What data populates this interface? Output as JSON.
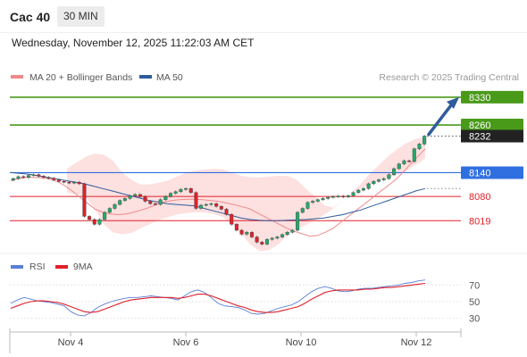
{
  "header": {
    "instrument": "Cac 40",
    "interval": "30 MIN",
    "datetime": "Wednesday, November 12, 2025 11:22:03 AM CET"
  },
  "legend": {
    "ma20_label": "MA 20 + Bollinger Bands",
    "ma50_label": "MA 50",
    "ma20_color": "#f08a8a",
    "ma50_color": "#2f5c9c",
    "credit": "Research © 2025 Trading Central"
  },
  "rsi_legend": {
    "rsi_label": "RSI",
    "ma_label": "9MA",
    "rsi_color": "#5b7fd6",
    "ma_color": "#e0202a"
  },
  "chart_data": [
    {
      "type": "line",
      "panel": "price",
      "x_ticks": [
        "Nov 4",
        "Nov 6",
        "Nov 10",
        "Nov 12"
      ],
      "ylim": [
        7950,
        8350
      ],
      "levels": [
        {
          "value": 8330,
          "label": "8330",
          "kind": "resistance",
          "color": "#4a9a1a"
        },
        {
          "value": 8260,
          "label": "8260",
          "kind": "resistance",
          "color": "#4a9a1a"
        },
        {
          "value": 8232,
          "label": "8232",
          "kind": "last-price",
          "color": "#222222"
        },
        {
          "value": 8140,
          "label": "8140",
          "kind": "pivot",
          "color": "#2f6fe0"
        },
        {
          "value": 8080,
          "label": "8080",
          "kind": "support",
          "color": "#e0202a"
        },
        {
          "value": 8019,
          "label": "8019",
          "kind": "support",
          "color": "#e0202a"
        }
      ],
      "forecast_arrow": {
        "from": 8232,
        "to": 8330,
        "color": "#2f5c9c"
      },
      "close": [
        8125,
        8130,
        8128,
        8133,
        8135,
        8131,
        8128,
        8126,
        8122,
        8118,
        8116,
        8114,
        8116,
        8112,
        8030,
        8022,
        8010,
        8022,
        8040,
        8050,
        8060,
        8070,
        8075,
        8082,
        8085,
        8080,
        8068,
        8062,
        8060,
        8072,
        8080,
        8088,
        8092,
        8098,
        8100,
        8090,
        8050,
        8058,
        8060,
        8062,
        8055,
        8048,
        8035,
        8010,
        7995,
        7985,
        7990,
        7978,
        7965,
        7960,
        7972,
        7975,
        7978,
        7984,
        7990,
        7995,
        8040,
        8050,
        8065,
        8068,
        8072,
        8075,
        8078,
        8080,
        8081,
        8079,
        8082,
        8090,
        8096,
        8100,
        8112,
        8118,
        8122,
        8125,
        8135,
        8150,
        8162,
        8170,
        8168,
        8200,
        8212,
        8232
      ],
      "ma20": [
        8120,
        8125,
        8128,
        8128,
        8127,
        8124,
        8118,
        8108,
        8094,
        8078,
        8063,
        8048,
        8040,
        8036,
        8034,
        8036,
        8040,
        8046,
        8052,
        8060,
        8066,
        8070,
        8072,
        8073,
        8073,
        8072,
        8070,
        8068,
        8064,
        8060,
        8055,
        8050,
        8040,
        8030,
        8020,
        8010,
        8000,
        7992,
        7986,
        7980,
        7982,
        7990,
        8000,
        8015,
        8030,
        8045,
        8060,
        8075,
        8090,
        8105,
        8120,
        8138,
        8160,
        8180,
        8200
      ],
      "ma50": [
        8140,
        8138,
        8136,
        8132,
        8128,
        8124,
        8120,
        8116,
        8112,
        8106,
        8100,
        8094,
        8088,
        8082,
        8076,
        8070,
        8066,
        8062,
        8060,
        8058,
        8056,
        8050,
        8044,
        8038,
        8032,
        8026,
        8022,
        8020,
        8019,
        8019,
        8020,
        8021,
        8022,
        8024,
        8026,
        8030,
        8034,
        8040,
        8046,
        8054,
        8062,
        8070,
        8078,
        8086,
        8094,
        8100
      ],
      "bb_upper": [
        8150,
        8165,
        8180,
        8188,
        8185,
        8170,
        8140,
        8122,
        8110,
        8110,
        8115,
        8120,
        8130,
        8140,
        8145,
        8148,
        8150,
        8148,
        8140,
        8132,
        8128,
        8128,
        8130,
        8132,
        8132,
        8122,
        8100,
        8080,
        8058,
        8052,
        8068,
        8090,
        8112,
        8138,
        8160,
        8182,
        8200,
        8215,
        8225,
        8230
      ],
      "bb_lower": [
        8090,
        8085,
        8080,
        8050,
        8010,
        7990,
        7985,
        7988,
        8000,
        8010,
        8020,
        8028,
        8035,
        8038,
        8040,
        8040,
        8036,
        8028,
        8010,
        7985,
        7958,
        7942,
        7945,
        7960,
        7982,
        7998,
        8008,
        8020,
        8034,
        8050,
        8068,
        8090,
        8100,
        8110,
        8120,
        8128,
        8135,
        8145,
        8160,
        8175
      ]
    },
    {
      "type": "line",
      "panel": "rsi",
      "y_ticks": [
        70,
        50,
        30
      ],
      "ylim": [
        20,
        80
      ],
      "series": [
        {
          "name": "RSI",
          "values": [
            48,
            52,
            55,
            53,
            51,
            50,
            49,
            47,
            45,
            38,
            34,
            33,
            37,
            43,
            47,
            50,
            52,
            54,
            55,
            55,
            56,
            57,
            56,
            55,
            54,
            52,
            57,
            62,
            64,
            61,
            55,
            48,
            45,
            44,
            43,
            40,
            36,
            35,
            36,
            39,
            42,
            44,
            46,
            50,
            56,
            62,
            66,
            68,
            66,
            63,
            62,
            63,
            65,
            66,
            66,
            67,
            68,
            69,
            70,
            72,
            73,
            75,
            76
          ]
        },
        {
          "name": "9MA",
          "values": [
            42,
            45,
            48,
            50,
            51,
            51,
            50,
            49,
            47,
            44,
            41,
            38,
            37,
            38,
            41,
            44,
            47,
            50,
            52,
            53,
            54,
            55,
            55,
            55,
            55,
            54,
            55,
            57,
            59,
            59,
            57,
            54,
            51,
            48,
            45,
            43,
            40,
            38,
            37,
            37,
            38,
            40,
            42,
            44,
            48,
            53,
            57,
            61,
            63,
            64,
            64,
            64,
            64,
            65,
            65,
            66,
            67,
            67,
            68,
            69,
            70,
            71,
            72
          ]
        }
      ]
    }
  ]
}
